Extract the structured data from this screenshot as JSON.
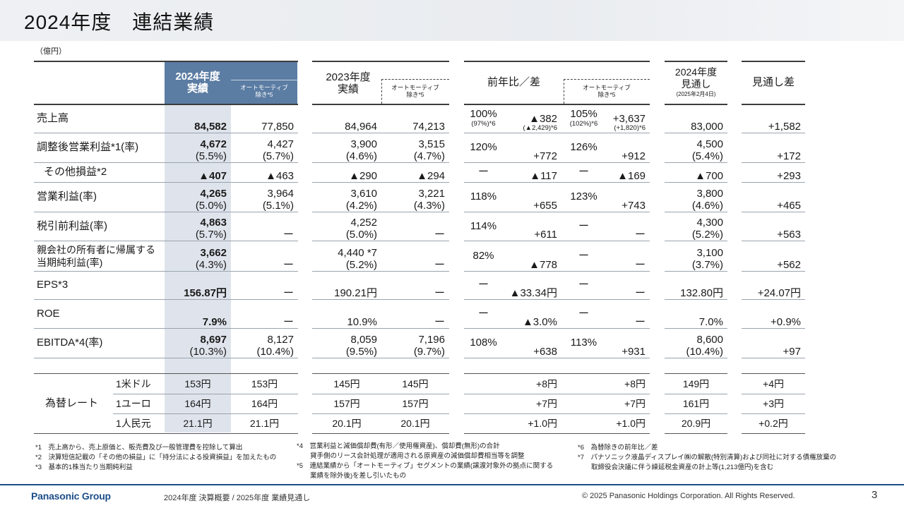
{
  "title": "2024年度　連結業績",
  "unit": "（億円）",
  "headers": {
    "fy2024_main": "2024年度\n実績",
    "fy2024_sub": "オートモーティブ\n除き*5",
    "fy2023_main": "2023年度\n実績",
    "fy2023_sub": "オートモーティブ\n除き*5",
    "yoy_main": "前年比／差",
    "yoy_sub": "オートモーティブ\n除き*5",
    "forecast_l1": "2024年度",
    "forecast_l2": "見通し",
    "forecast_l3": "(2025年2月4日)",
    "diff": "見通し差"
  },
  "rows": [
    {
      "label": "売上高",
      "a": "84,582",
      "a2": "",
      "b": "77,850",
      "b2": "",
      "c": "84,964",
      "c2": "",
      "d": "74,213",
      "d2": "",
      "e": "100%",
      "e2": "(97%)*6",
      "f": "▲382",
      "f2": "(▲2,429)*6",
      "g": "105%",
      "g2": "(102%)*6",
      "h": "+3,637",
      "h2": "(+1,820)*6",
      "i": "83,000",
      "i2": "",
      "j": "+1,582"
    },
    {
      "label": "調整後営業利益*1(率)",
      "a": "4,672",
      "a2": "(5.5%)",
      "b": "4,427",
      "b2": "(5.7%)",
      "c": "3,900",
      "c2": "(4.6%)",
      "d": "3,515",
      "d2": "(4.7%)",
      "e": "120%",
      "e2": "",
      "f": "+772",
      "f2": "",
      "g": "126%",
      "g2": "",
      "h": "+912",
      "h2": "",
      "i": "4,500",
      "i2": "(5.4%)",
      "j": "+172"
    },
    {
      "label": "その他損益*2",
      "a": "▲407",
      "a2": "",
      "b": "▲463",
      "b2": "",
      "c": "▲290",
      "c2": "",
      "d": "▲294",
      "d2": "",
      "e": "ー",
      "e2": "",
      "f": "▲117",
      "f2": "",
      "g": "ー",
      "g2": "",
      "h": "▲169",
      "h2": "",
      "i": "▲700",
      "i2": "",
      "j": "+293"
    },
    {
      "label": "営業利益(率)",
      "a": "4,265",
      "a2": "(5.0%)",
      "b": "3,964",
      "b2": "(5.1%)",
      "c": "3,610",
      "c2": "(4.2%)",
      "d": "3,221",
      "d2": "(4.3%)",
      "e": "118%",
      "e2": "",
      "f": "+655",
      "f2": "",
      "g": "123%",
      "g2": "",
      "h": "+743",
      "h2": "",
      "i": "3,800",
      "i2": "(4.6%)",
      "j": "+465"
    },
    {
      "label": "税引前利益(率)",
      "a": "4,863",
      "a2": "(5.7%)",
      "b": "ー",
      "b2": "",
      "c": "4,252",
      "c2": "(5.0%)",
      "d": "ー",
      "d2": "",
      "e": "114%",
      "e2": "",
      "f": "+611",
      "f2": "",
      "g": "ー",
      "g2": "",
      "h": "ー",
      "h2": "",
      "i": "4,300",
      "i2": "(5.2%)",
      "j": "+563"
    },
    {
      "label": "親会社の所有者に帰属する\n当期純利益(率)",
      "a": "3,662",
      "a2": "(4.3%)",
      "b": "ー",
      "b2": "",
      "c": "4,440 *7",
      "c2": "(5.2%)",
      "d": "ー",
      "d2": "",
      "e": "82%",
      "e2": "",
      "f": "▲778",
      "f2": "",
      "g": "ー",
      "g2": "",
      "h": "ー",
      "h2": "",
      "i": "3,100",
      "i2": "(3.7%)",
      "j": "+562"
    },
    {
      "label": "EPS*3",
      "a": "156.87円",
      "a2": "",
      "b": "ー",
      "b2": "",
      "c": "190.21円",
      "c2": "",
      "d": "ー",
      "d2": "",
      "e": "ー",
      "e2": "",
      "f": "▲33.34円",
      "f2": "",
      "g": "ー",
      "g2": "",
      "h": "ー",
      "h2": "",
      "i": "132.80円",
      "i2": "",
      "j": "+24.07円"
    },
    {
      "label": "ROE",
      "a": "7.9%",
      "a2": "",
      "b": "ー",
      "b2": "",
      "c": "10.9%",
      "c2": "",
      "d": "ー",
      "d2": "",
      "e": "ー",
      "e2": "",
      "f": "▲3.0%",
      "f2": "",
      "g": "ー",
      "g2": "",
      "h": "ー",
      "h2": "",
      "i": "7.0%",
      "i2": "",
      "j": "+0.9%"
    },
    {
      "label": "EBITDA*4(率)",
      "a": "8,697",
      "a2": "(10.3%)",
      "b": "8,127",
      "b2": "(10.4%)",
      "c": "8,059",
      "c2": "(9.5%)",
      "d": "7,196",
      "d2": "(9.7%)",
      "e": "108%",
      "e2": "",
      "f": "+638",
      "f2": "",
      "g": "113%",
      "g2": "",
      "h": "+931",
      "h2": "",
      "i": "8,600",
      "i2": "(10.4%)",
      "j": "+97"
    }
  ],
  "fx": {
    "label": "為替レート",
    "rows": [
      {
        "label": "1米ドル",
        "a": "153円",
        "b": "153円",
        "c": "145円",
        "d": "145円",
        "f": "+8円",
        "h": "+8円",
        "i": "149円",
        "j": "+4円"
      },
      {
        "label": "1ユーロ",
        "a": "164円",
        "b": "164円",
        "c": "157円",
        "d": "157円",
        "f": "+7円",
        "h": "+7円",
        "i": "161円",
        "j": "+3円"
      },
      {
        "label": "1人民元",
        "a": "21.1円",
        "b": "21.1円",
        "c": "20.1円",
        "d": "20.1円",
        "f": "+1.0円",
        "h": "+1.0円",
        "i": "20.9円",
        "j": "+0.2円"
      }
    ]
  },
  "footnotes": {
    "n1": "*1　売上高から、売上原価と、販売費及び一般管理費を控除して算出",
    "n2": "*2　決算短信記載の「その他の損益」に「持分法による投資損益」を加えたもの",
    "n3": "*3　基本的1株当たり当期純利益",
    "n4a": "*4　営業利益と減価償却費(有形／使用権資産)、償却費(無形)の合計",
    "n4b": "　　貸手側のリース会計処理が適用される原資産の減価償却費相当等を調整",
    "n5a": "*5　連結業績から「オートモーティブ」セグメントの業績(譲渡対象外の拠点に関する",
    "n5b": "　　業績を除外後)を差し引いたもの",
    "n6": "*6　為替除きの前年比／差",
    "n7a": "*7　パナソニック液晶ディスプレイ㈱の解散(特別清算)および同社に対する債権放棄の",
    "n7b": "　　取締役会決議に伴う繰延税金資産の計上等(1,213億円)を含む"
  },
  "footer": {
    "logo": "Panasonic Group",
    "center": "2024年度 決算概要 / 2025年度 業績見通し",
    "copyright": "© 2025 Panasonic Holdings Corporation. All Rights Reserved.",
    "page": "3"
  }
}
